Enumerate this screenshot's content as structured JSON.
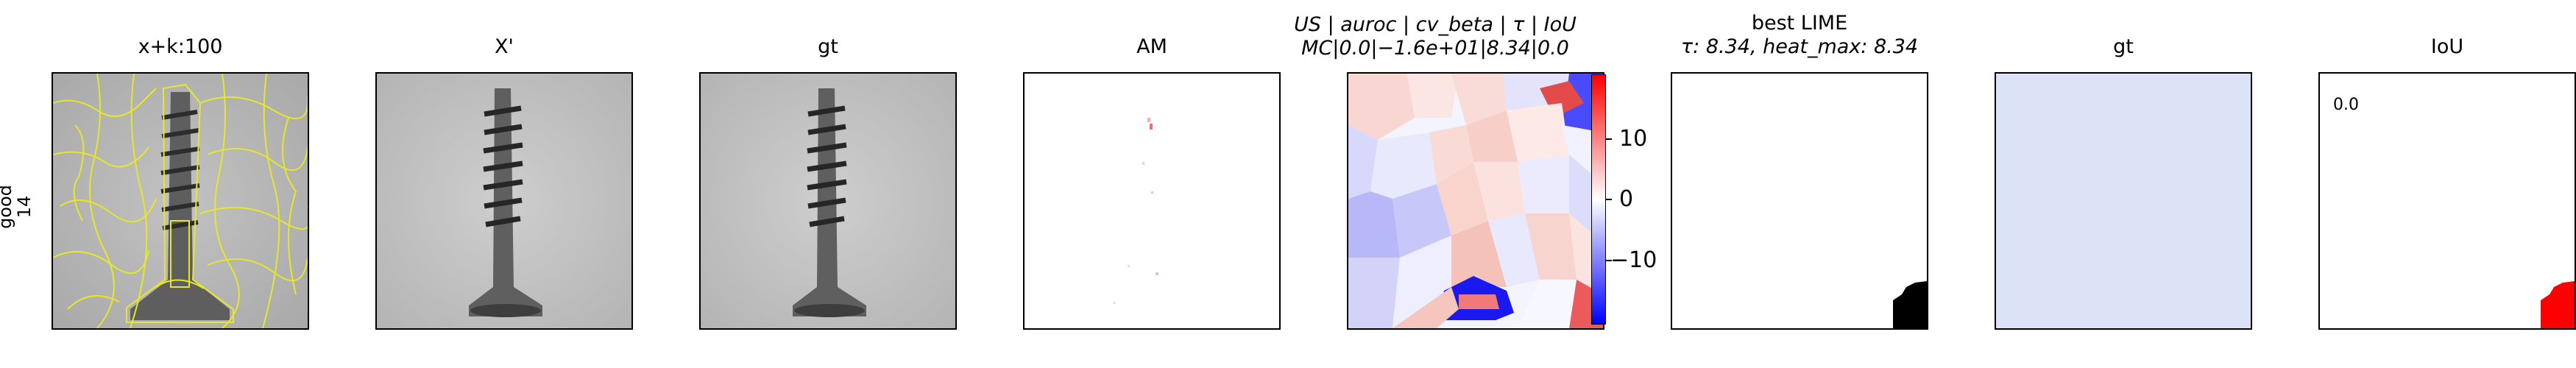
{
  "row_label": {
    "line1": "good",
    "line2": "14"
  },
  "panels": [
    {
      "key": "overlay",
      "title": "x+k:100"
    },
    {
      "key": "xprime",
      "title": "X'"
    },
    {
      "key": "gt1",
      "title": "gt"
    },
    {
      "key": "am",
      "title": "AM"
    },
    {
      "key": "us",
      "title_line1": "US | auroc | cv_beta | τ | IoU",
      "title_line2": "MC|0.0|−1.6e+01|8.34|0.0"
    },
    {
      "key": "lime",
      "title_line1": "best LIME",
      "title_line2": "τ: 8.34, heat_max: 8.34"
    },
    {
      "key": "gt2",
      "title": "gt"
    },
    {
      "key": "iou",
      "title": "IoU",
      "value": "0.0"
    }
  ],
  "colorbar": {
    "ticks": [
      "10",
      "0",
      "−10"
    ],
    "high_color": "#ff0000",
    "mid_color": "#ffffff",
    "low_color": "#0000ff"
  },
  "colors": {
    "contour": "#e6e62a",
    "gt_fill": "#dde3f7",
    "mask": "#000000",
    "iou_mask": "#ff0000"
  }
}
